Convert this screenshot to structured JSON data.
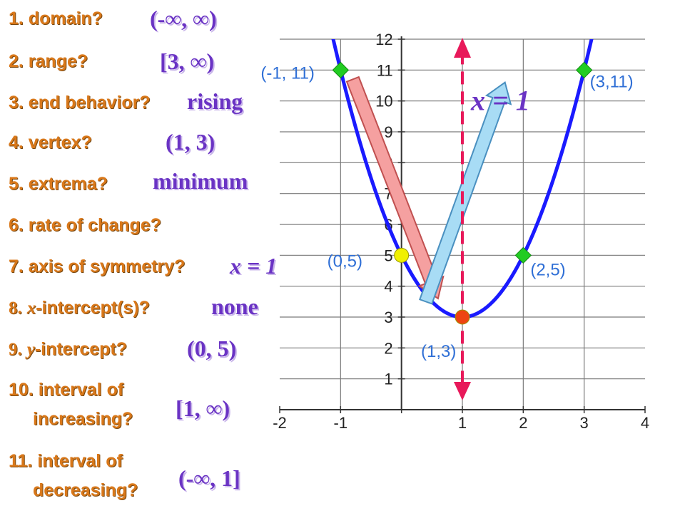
{
  "questions": [
    {
      "label": "1. domain?",
      "answer": "(-∞, ∞)"
    },
    {
      "label": "2. range?",
      "answer": "[3, ∞)"
    },
    {
      "label": "3. end behavior?",
      "answer": "rising"
    },
    {
      "label": "4. vertex?",
      "answer": "(1, 3)"
    },
    {
      "label": "5. extrema?",
      "answer": "minimum"
    },
    {
      "label": "6. rate of change?",
      "answer": ""
    },
    {
      "label": "7. axis of symmetry?",
      "answer": "x = 1"
    },
    {
      "label_num": "8.",
      "label_var": "x",
      "label_rest": "-intercept(s)?",
      "answer": "none"
    },
    {
      "label_num": "9.",
      "label_var": "y",
      "label_rest": "-intercept?",
      "answer": "(0, 5)"
    },
    {
      "label_line1": "10. interval of",
      "label_line2": "increasing?",
      "answer": "[1, ∞)"
    },
    {
      "label_line1": "11. interval of",
      "label_line2": "decreasing?",
      "answer": "(-∞, 1]"
    }
  ],
  "chart_data": {
    "type": "line",
    "function": "y = 2(x - 1)^2 + 3",
    "xlim": [
      -2,
      4
    ],
    "ylim": [
      0,
      12
    ],
    "x_ticks": [
      "-2",
      "-1",
      "1",
      "2",
      "3",
      "4"
    ],
    "y_ticks": [
      "1",
      "2",
      "3",
      "4",
      "5",
      "6",
      "7",
      "8",
      "9",
      "10",
      "11",
      "12"
    ],
    "grid": true,
    "curve_color": "#1a1aff",
    "points": [
      {
        "x": -1,
        "y": 11,
        "label": "(-1, 11)",
        "color": "#22cc22",
        "shape": "diamond"
      },
      {
        "x": 3,
        "y": 11,
        "label": "(3,11)",
        "color": "#22cc22",
        "shape": "diamond"
      },
      {
        "x": 0,
        "y": 5,
        "label": "(0,5)",
        "color": "#f0f000",
        "shape": "circle"
      },
      {
        "x": 2,
        "y": 5,
        "label": "(2,5)",
        "color": "#22cc22",
        "shape": "diamond"
      },
      {
        "x": 1,
        "y": 3,
        "label": "(1,3)",
        "color": "#ee4411",
        "shape": "circle"
      }
    ],
    "axis_of_symmetry": {
      "x": 1,
      "label": "x = 1",
      "color": "#e8195a"
    },
    "arrows": [
      {
        "from": [
          -0.8,
          10.7
        ],
        "to": [
          0.6,
          3.6
        ],
        "color": "#f5a0a0"
      },
      {
        "from": [
          0.4,
          3.5
        ],
        "to": [
          1.7,
          10.6
        ],
        "color": "#a8dcf5"
      }
    ]
  }
}
